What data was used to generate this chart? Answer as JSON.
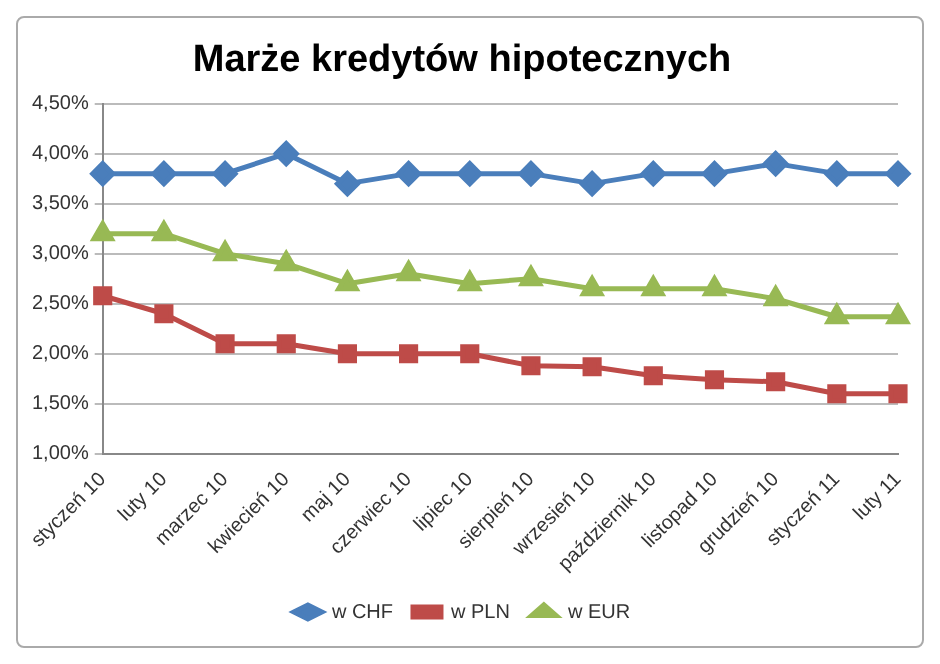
{
  "chart_data": {
    "type": "line",
    "title": "Marże kredytów hipotecznych",
    "categories": [
      "styczeń 10",
      "luty 10",
      "marzec 10",
      "kwiecień 10",
      "maj 10",
      "czerwiec 10",
      "lipiec 10",
      "sierpień 10",
      "wrzesień 10",
      "październik 10",
      "listopad 10",
      "grudzień 10",
      "styczeń 11",
      "luty 11"
    ],
    "series": [
      {
        "name": "w CHF",
        "color": "#4a7ebb",
        "marker": "diamond",
        "values": [
          3.8,
          3.8,
          3.8,
          4.0,
          3.7,
          3.8,
          3.8,
          3.8,
          3.7,
          3.8,
          3.8,
          3.9,
          3.8,
          3.8
        ]
      },
      {
        "name": "w PLN",
        "color": "#be4b48",
        "marker": "square",
        "values": [
          2.58,
          2.4,
          2.1,
          2.1,
          2.0,
          2.0,
          2.0,
          1.88,
          1.87,
          1.78,
          1.74,
          1.72,
          1.6,
          1.6
        ]
      },
      {
        "name": "w EUR",
        "color": "#98b954",
        "marker": "triangle",
        "values": [
          3.2,
          3.2,
          3.0,
          2.9,
          2.7,
          2.8,
          2.7,
          2.75,
          2.65,
          2.65,
          2.65,
          2.55,
          2.37,
          2.37
        ]
      }
    ],
    "ylim": [
      1,
      4.5
    ],
    "yticks": [
      {
        "value": 1,
        "label": "1,00%"
      },
      {
        "value": 1.5,
        "label": "1,50%"
      },
      {
        "value": 2,
        "label": "2,00%"
      },
      {
        "value": 2.5,
        "label": "2,50%"
      },
      {
        "value": 3,
        "label": "3,00%"
      },
      {
        "value": 3.5,
        "label": "3,50%"
      },
      {
        "value": 4,
        "label": "4,00%"
      },
      {
        "value": 4.5,
        "label": "4,50%"
      }
    ],
    "grid": "y",
    "legend": "bottom",
    "line_style": "solid"
  }
}
